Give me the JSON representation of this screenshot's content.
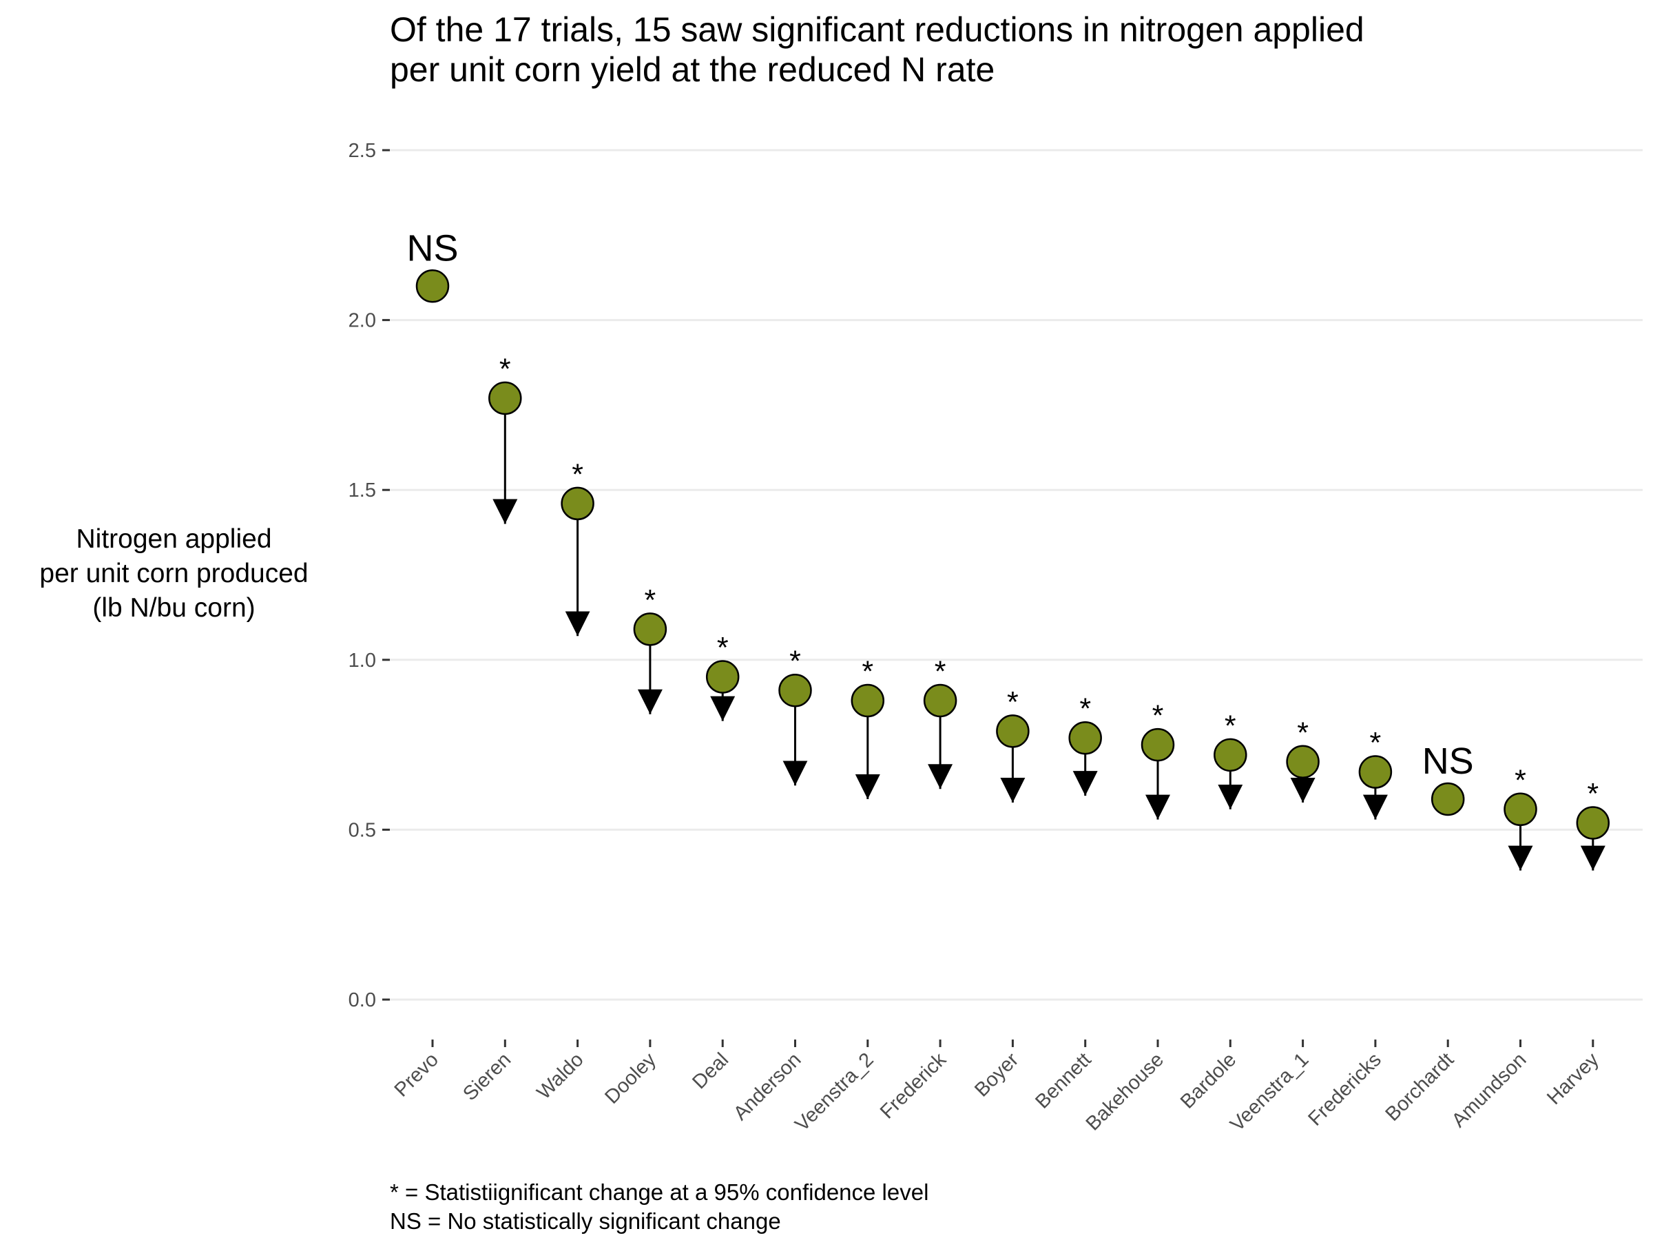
{
  "chart_data": {
    "type": "scatter",
    "title": "Of the 17 trials, 15 saw significant reductions in nitrogen applied\nper unit corn yield at the reduced N rate",
    "ylabel": "Nitrogen applied\nper unit corn produced\n(lb N/bu corn)",
    "xlabel": "",
    "ylim": [
      0,
      2.5
    ],
    "yticks": [
      0.0,
      0.5,
      1.0,
      1.5,
      2.0,
      2.5
    ],
    "ytick_labels": [
      "0.0",
      "0.5",
      "1.0",
      "1.5",
      "2.0",
      "2.5"
    ],
    "grid": "horizontal",
    "point_color": "#7a8c1c",
    "categories": [
      "Prevo",
      "Sieren",
      "Waldo",
      "Dooley",
      "Deal",
      "Anderson",
      "Veenstra_2",
      "Frederick",
      "Boyer",
      "Bennett",
      "Bakehouse",
      "Bardole",
      "Veenstra_1",
      "Fredericks",
      "Borchardt",
      "Amundson",
      "Harvey"
    ],
    "series": [
      {
        "values": [
          2.1,
          1.77,
          1.46,
          1.09,
          0.95,
          0.91,
          0.88,
          0.88,
          0.79,
          0.77,
          0.75,
          0.72,
          0.7,
          0.67,
          0.59,
          0.56,
          0.52
        ]
      },
      {
        "values": [
          null,
          1.4,
          1.07,
          0.84,
          0.82,
          0.63,
          0.59,
          0.62,
          0.58,
          0.6,
          0.53,
          0.56,
          0.58,
          0.53,
          null,
          0.38,
          0.38
        ]
      }
    ],
    "significance": [
      "NS",
      "*",
      "*",
      "*",
      "*",
      "*",
      "*",
      "*",
      "*",
      "*",
      "*",
      "*",
      "*",
      "*",
      "NS",
      "*",
      "*"
    ]
  },
  "caption": "* = Statistiignificant change at a 95% confidence level\nNS = No statistically significant change"
}
